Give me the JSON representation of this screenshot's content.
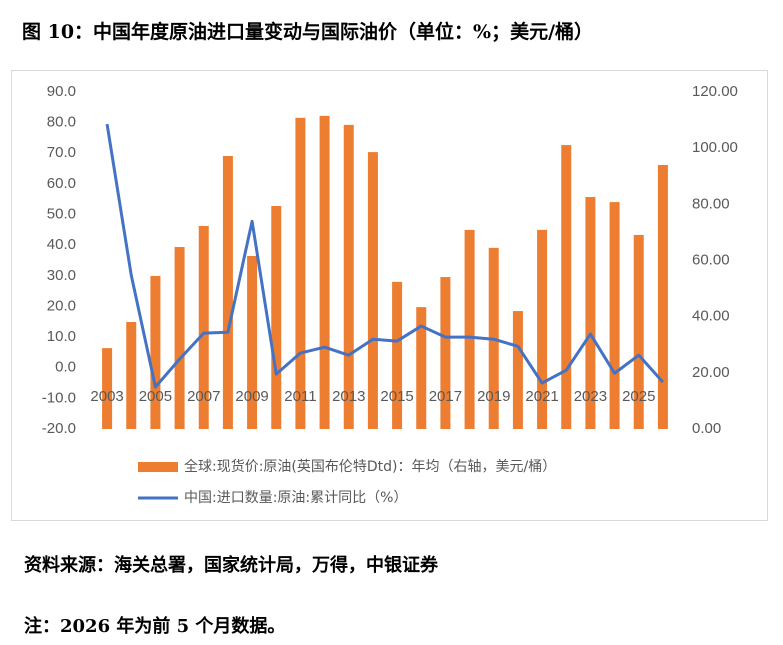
{
  "chart_data": {
    "type": "bar",
    "title": "图 10：中国年度原油进口量变动与国际油价（单位：%；美元/桶）",
    "categories": [
      "2003",
      null,
      "2005",
      null,
      "2007",
      null,
      "2009",
      null,
      "2011",
      null,
      "2013",
      null,
      "2015",
      null,
      "2017",
      null,
      "2019",
      null,
      "2021",
      null,
      "2023",
      null,
      "2025",
      null
    ],
    "series": [
      {
        "name": "全球:现货价:原油(英国布伦特Dtd)：年均（右轴，美元/桶）",
        "color": "#ed7d31",
        "type": "bar",
        "axis": "y2",
        "values": [
          28.8,
          38.1,
          54.5,
          64.8,
          72.3,
          97.2,
          61.6,
          79.4,
          110.8,
          111.5,
          108.3,
          98.6,
          52.4,
          43.4,
          54.1,
          70.9,
          64.5,
          42.0,
          70.9,
          101.1,
          82.6,
          80.8,
          69.1,
          94.0
        ]
      },
      {
        "name": "中国:进口数量:原油:累计同比（%）",
        "color": "#4472c4",
        "type": "line",
        "values": [
          79.5,
          30.2,
          -6.3,
          2.8,
          11.3,
          11.6,
          47.8,
          -2.1,
          4.8,
          6.7,
          4.1,
          9.3,
          8.7,
          13.6,
          10.0,
          10.0,
          9.3,
          7.0,
          -5.0,
          -0.8,
          11.0,
          -1.8,
          4.1,
          -4.7
        ]
      }
    ],
    "ylim": [
      -20,
      90
    ],
    "yticks": [
      {
        "value": -20,
        "label": "-20.0"
      },
      {
        "value": -10,
        "label": "-10.0"
      },
      {
        "value": 0,
        "label": "0.0"
      },
      {
        "value": 10,
        "label": "10.0"
      },
      {
        "value": 20,
        "label": "20.0"
      },
      {
        "value": 30,
        "label": "30.0"
      },
      {
        "value": 40,
        "label": "40.0"
      },
      {
        "value": 50,
        "label": "50.0"
      },
      {
        "value": 60,
        "label": "60.0"
      },
      {
        "value": 70,
        "label": "70.0"
      },
      {
        "value": 80,
        "label": "80.0"
      },
      {
        "value": 90,
        "label": "90.0"
      }
    ],
    "y2lim": [
      0,
      120
    ],
    "y2ticks": [
      {
        "value": 0,
        "label": "0.00"
      },
      {
        "value": 20,
        "label": "20.00"
      },
      {
        "value": 40,
        "label": "40.00"
      },
      {
        "value": 60,
        "label": "60.00"
      },
      {
        "value": 80,
        "label": "80.00"
      },
      {
        "value": 100,
        "label": "100.00"
      },
      {
        "value": 120,
        "label": "120.00"
      }
    ],
    "legend": "bottom",
    "grid": false
  },
  "notes": [
    "资料来源：海关总署，国家统计局，万得，中银证券",
    "注：2026 年为前 5 个月数据。"
  ]
}
